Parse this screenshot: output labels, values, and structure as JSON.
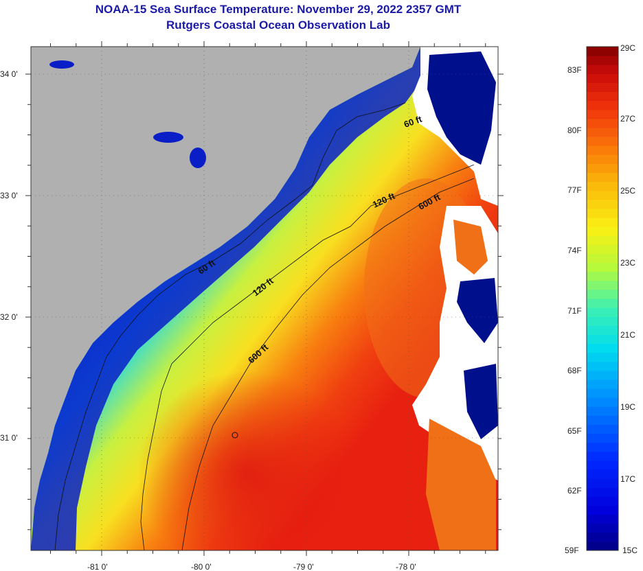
{
  "title": {
    "line1": "NOAA-15 Sea Surface Temperature:  November 29, 2022 2357 GMT",
    "line2": "Rutgers Coastal Ocean Observation Lab"
  },
  "map": {
    "lat_labels": [
      "34 0'",
      "33 0'",
      "32 0'",
      "31 0'"
    ],
    "lon_labels": [
      "-81 0'",
      "-80 0'",
      "-79 0'",
      "-78 0'"
    ],
    "contours": [
      "60 ft",
      "120 ft",
      "600 ft",
      "120 ft",
      "600 ft",
      "60 ft"
    ],
    "colors": {
      "land": "#b0b0b0",
      "cloud": "#ffffff",
      "cold": "#00008b"
    }
  },
  "colorbar": {
    "celsius": [
      "29C",
      "27C",
      "25C",
      "23C",
      "21C",
      "19C",
      "17C",
      "15C"
    ],
    "fahrenheit": [
      "83F",
      "80F",
      "77F",
      "74F",
      "71F",
      "68F",
      "65F",
      "62F",
      "59F"
    ],
    "range_c": [
      15,
      29
    ]
  }
}
